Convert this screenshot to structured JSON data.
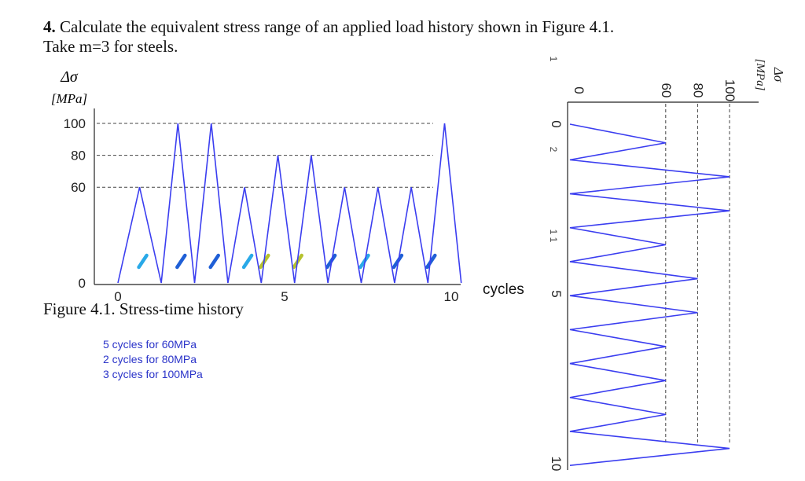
{
  "question": {
    "number": "4.",
    "line1": "Calculate the equivalent stress range of an applied load history shown in Figure 4.1.",
    "line2": "Take m=3 for steels."
  },
  "figure_caption": "Figure 4.1. Stress-time history",
  "notes": [
    "5 cycles for 60MPa",
    "2 cycles for 80MPa",
    "3 cycles for 100MPa"
  ],
  "rotated_axis_stray_marks": [
    "1",
    "2",
    "1 1"
  ],
  "colors": {
    "series": "#3b3ef0",
    "grid": "#444444",
    "note_text": "#2b34c9",
    "annotation_marks": [
      "#29a9e8",
      "#1f5fd6",
      "#b6c22e"
    ]
  },
  "chart_data": [
    {
      "type": "line",
      "title": "",
      "ylabel_lines": [
        "Δσ",
        "[MPa]"
      ],
      "xlabel": "cycles",
      "x_ticks": [
        "0",
        "5",
        "10"
      ],
      "y_ticks": [
        "0",
        "60",
        "80",
        "100"
      ],
      "xlim": [
        0,
        10
      ],
      "ylim": [
        0,
        100
      ],
      "reference_levels": [
        60,
        80,
        100
      ],
      "series": [
        {
          "x": [
            0,
            0.65,
            1.3,
            1.8,
            2.3,
            2.8,
            3.3,
            3.8,
            4.3,
            4.8,
            5.3,
            5.8,
            6.3,
            6.8,
            7.3,
            7.8,
            8.3,
            8.8,
            9.3,
            9.8,
            10.3
          ],
          "y": [
            0,
            60,
            0,
            100,
            0,
            100,
            0,
            60,
            0,
            80,
            0,
            80,
            0,
            60,
            0,
            60,
            0,
            60,
            0,
            100,
            0
          ]
        }
      ],
      "annotation_marks": [
        {
          "x": 0.65,
          "color": "#29a9e8"
        },
        {
          "x": 1.8,
          "color": "#1f5fd6"
        },
        {
          "x": 2.8,
          "color": "#1f5fd6"
        },
        {
          "x": 3.8,
          "color": "#29a9e8"
        },
        {
          "x": 4.3,
          "color": "#b6c22e"
        },
        {
          "x": 5.3,
          "color": "#b6c22e"
        },
        {
          "x": 6.3,
          "color": "#1f5fd6"
        },
        {
          "x": 7.3,
          "color": "#29a9e8"
        },
        {
          "x": 8.3,
          "color": "#1f5fd6"
        },
        {
          "x": 9.3,
          "color": "#1f5fd6"
        }
      ]
    },
    {
      "type": "line",
      "orientation": "rotated",
      "title": "",
      "ylabel_lines": [
        "Δσ",
        "[MPa]"
      ],
      "x_ticks": [
        "0",
        "5",
        "10"
      ],
      "y_ticks": [
        "0",
        "60",
        "80",
        "100"
      ],
      "xlim": [
        0,
        10
      ],
      "ylim": [
        0,
        100
      ],
      "reference_levels": [
        60,
        80,
        100
      ],
      "series": [
        {
          "x": [
            0,
            0.55,
            1.05,
            1.55,
            2.05,
            2.55,
            3.05,
            3.55,
            4.05,
            4.55,
            5.05,
            5.55,
            6.05,
            6.55,
            7.05,
            7.55,
            8.05,
            8.55,
            9.05,
            9.55,
            10.05
          ],
          "y": [
            0,
            60,
            0,
            100,
            0,
            100,
            0,
            60,
            0,
            80,
            0,
            80,
            0,
            60,
            0,
            60,
            0,
            60,
            0,
            100,
            0
          ]
        }
      ]
    }
  ]
}
